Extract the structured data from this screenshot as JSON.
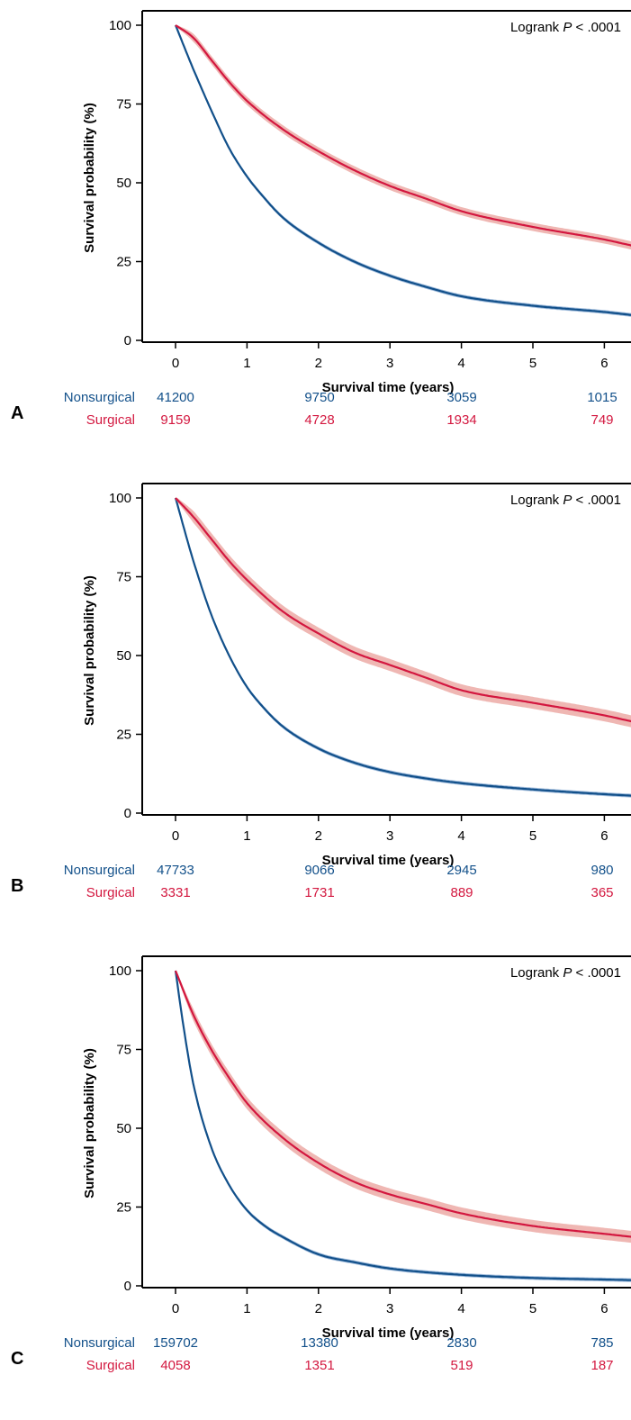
{
  "panels": [
    {
      "letter": "A",
      "logrank_prefix": "Logrank ",
      "logrank_p": "P",
      "logrank_suffix": " < .0001",
      "ylabel": "Survival probability (%)",
      "xlabel": "Survival time (years)",
      "risk_table": {
        "nonsurgical_label": "Nonsurgical",
        "surgical_label": "Surgical",
        "nonsurgical": [
          "41200",
          "9750",
          "3059",
          "1015"
        ],
        "surgical": [
          "9159",
          "4728",
          "1934",
          "749"
        ]
      }
    },
    {
      "letter": "B",
      "logrank_prefix": "Logrank ",
      "logrank_p": "P",
      "logrank_suffix": " < .0001",
      "ylabel": "Survival probability (%)",
      "xlabel": "Survival time (years)",
      "risk_table": {
        "nonsurgical_label": "Nonsurgical",
        "surgical_label": "Surgical",
        "nonsurgical": [
          "47733",
          "9066",
          "2945",
          "980"
        ],
        "surgical": [
          "3331",
          "1731",
          "889",
          "365"
        ]
      }
    },
    {
      "letter": "C",
      "logrank_prefix": "Logrank ",
      "logrank_p": "P",
      "logrank_suffix": " < .0001",
      "ylabel": "Survival probability (%)",
      "xlabel": "Survival time (years)",
      "risk_table": {
        "nonsurgical_label": "Nonsurgical",
        "surgical_label": "Surgical",
        "nonsurgical": [
          "159702",
          "13380",
          "2830",
          "785"
        ],
        "surgical": [
          "4058",
          "1351",
          "519",
          "187"
        ]
      }
    }
  ],
  "colors": {
    "nonsurgical": "#12508a",
    "surgical": "#d3173f",
    "surgical_band": "#ecaaa6",
    "nonsurgical_band": "#8fb0d6"
  },
  "chart_data": [
    {
      "type": "line",
      "xlim": [
        0,
        6.4
      ],
      "ylim": [
        0,
        100
      ],
      "xticks": [
        0,
        1,
        2,
        3,
        4,
        5,
        6
      ],
      "yticks": [
        0,
        25,
        50,
        75,
        100
      ],
      "series": [
        {
          "group": "nonsurgical",
          "x": [
            0,
            0.25,
            0.5,
            0.75,
            1,
            1.25,
            1.5,
            2,
            2.5,
            3,
            3.5,
            4,
            5,
            6,
            6.4
          ],
          "y": [
            100,
            86,
            73,
            61,
            52,
            45,
            39,
            31,
            25,
            20.5,
            17,
            14,
            11,
            9,
            8
          ]
        },
        {
          "group": "surgical",
          "x": [
            0,
            0.25,
            0.5,
            0.75,
            1,
            1.5,
            2,
            2.5,
            3,
            3.5,
            4,
            5,
            6,
            6.4
          ],
          "y": [
            100,
            96,
            89,
            82,
            76,
            67,
            60,
            54,
            49,
            45,
            41,
            36,
            32,
            30
          ]
        }
      ]
    },
    {
      "type": "line",
      "xlim": [
        0,
        6.4
      ],
      "ylim": [
        0,
        100
      ],
      "xticks": [
        0,
        1,
        2,
        3,
        4,
        5,
        6
      ],
      "yticks": [
        0,
        25,
        50,
        75,
        100
      ],
      "series": [
        {
          "group": "nonsurgical",
          "x": [
            0,
            0.25,
            0.5,
            0.75,
            1,
            1.25,
            1.5,
            2,
            2.5,
            3,
            3.5,
            4,
            5,
            6,
            6.4
          ],
          "y": [
            100,
            80,
            63,
            50,
            40,
            33,
            27.5,
            20.5,
            16,
            13,
            11,
            9.5,
            7.5,
            6,
            5.5
          ]
        },
        {
          "group": "surgical",
          "x": [
            0,
            0.25,
            0.5,
            0.75,
            1,
            1.5,
            2,
            2.5,
            3,
            3.5,
            4,
            5,
            6,
            6.4
          ],
          "y": [
            100,
            94,
            87,
            80,
            74,
            64,
            57,
            51,
            47,
            43,
            39,
            35,
            31,
            29
          ]
        }
      ]
    },
    {
      "type": "line",
      "xlim": [
        0,
        6.4
      ],
      "ylim": [
        0,
        100
      ],
      "xticks": [
        0,
        1,
        2,
        3,
        4,
        5,
        6
      ],
      "yticks": [
        0,
        25,
        50,
        75,
        100
      ],
      "series": [
        {
          "group": "nonsurgical",
          "x": [
            0,
            0.1,
            0.25,
            0.5,
            0.75,
            1,
            1.25,
            1.5,
            2,
            2.5,
            3,
            4,
            5,
            6,
            6.4
          ],
          "y": [
            100,
            84,
            64,
            44,
            32,
            24,
            19,
            15.5,
            10,
            7.5,
            5.5,
            3.5,
            2.5,
            2,
            1.8
          ]
        },
        {
          "group": "surgical",
          "x": [
            0,
            0.25,
            0.5,
            0.75,
            1,
            1.5,
            2,
            2.5,
            3,
            3.5,
            4,
            5,
            6,
            6.4
          ],
          "y": [
            100,
            86,
            75,
            66,
            58,
            47,
            39,
            33,
            29,
            26,
            23,
            19,
            16.5,
            15.5
          ]
        }
      ]
    }
  ]
}
